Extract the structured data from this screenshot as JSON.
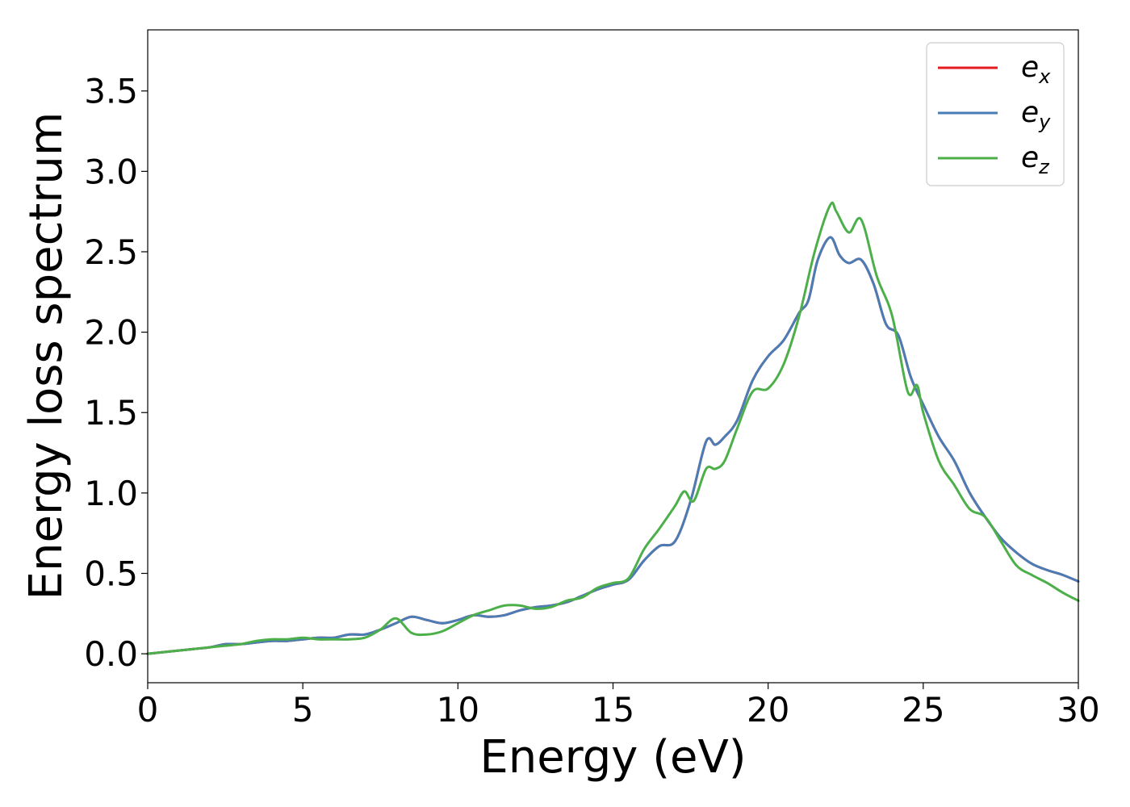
{
  "chart_data": {
    "type": "line",
    "title": "",
    "xlabel": "Energy (eV)",
    "ylabel": "Energy loss spectrum",
    "xlim": [
      0,
      30
    ],
    "ylim": [
      -0.18,
      3.88
    ],
    "xticks": [
      0,
      5,
      10,
      15,
      20,
      25,
      30
    ],
    "xtick_labels": [
      "0",
      "5",
      "10",
      "15",
      "20",
      "25",
      "30"
    ],
    "yticks": [
      0.0,
      0.5,
      1.0,
      1.5,
      2.0,
      2.5,
      3.0,
      3.5
    ],
    "ytick_labels": [
      "0.0",
      "0.5",
      "1.0",
      "1.5",
      "2.0",
      "2.5",
      "3.0",
      "3.5"
    ],
    "grid": false,
    "legend": "top-right",
    "series": [
      {
        "name": "e_x",
        "legend_base": "e",
        "legend_sub": "x",
        "color": "#e41a1c",
        "x": [
          0,
          0.5,
          1,
          1.5,
          2,
          2.5,
          3,
          3.5,
          4,
          4.5,
          5,
          5.5,
          6,
          6.5,
          7,
          7.5,
          8,
          8.5,
          9,
          9.5,
          10,
          10.5,
          11,
          11.5,
          12,
          12.5,
          13,
          13.5,
          14,
          14.5,
          15,
          15.5,
          16,
          16.5,
          17,
          17.5,
          18,
          18.3,
          18.6,
          19,
          19.5,
          20,
          20.5,
          21,
          21.3,
          21.6,
          22,
          22.3,
          22.6,
          23,
          23.4,
          23.8,
          24.2,
          24.6,
          25,
          25.5,
          26,
          26.5,
          27,
          27.5,
          28,
          28.5,
          29,
          29.5,
          30
        ],
        "y": [
          0.0,
          0.01,
          0.02,
          0.03,
          0.04,
          0.06,
          0.06,
          0.07,
          0.08,
          0.08,
          0.09,
          0.1,
          0.1,
          0.12,
          0.12,
          0.15,
          0.19,
          0.23,
          0.21,
          0.19,
          0.21,
          0.24,
          0.23,
          0.24,
          0.27,
          0.29,
          0.3,
          0.32,
          0.36,
          0.4,
          0.43,
          0.46,
          0.58,
          0.67,
          0.7,
          0.95,
          1.32,
          1.3,
          1.35,
          1.45,
          1.7,
          1.85,
          1.95,
          2.12,
          2.2,
          2.45,
          2.59,
          2.48,
          2.43,
          2.45,
          2.3,
          2.05,
          1.98,
          1.72,
          1.55,
          1.35,
          1.2,
          1.0,
          0.85,
          0.72,
          0.63,
          0.56,
          0.52,
          0.49,
          0.45
        ]
      },
      {
        "name": "e_y",
        "legend_base": "e",
        "legend_sub": "y",
        "color": "#4a7db5",
        "x": [
          0,
          0.5,
          1,
          1.5,
          2,
          2.5,
          3,
          3.5,
          4,
          4.5,
          5,
          5.5,
          6,
          6.5,
          7,
          7.5,
          8,
          8.5,
          9,
          9.5,
          10,
          10.5,
          11,
          11.5,
          12,
          12.5,
          13,
          13.5,
          14,
          14.5,
          15,
          15.5,
          16,
          16.5,
          17,
          17.5,
          18,
          18.3,
          18.6,
          19,
          19.5,
          20,
          20.5,
          21,
          21.3,
          21.6,
          22,
          22.3,
          22.6,
          23,
          23.4,
          23.8,
          24.2,
          24.6,
          25,
          25.5,
          26,
          26.5,
          27,
          27.5,
          28,
          28.5,
          29,
          29.5,
          30
        ],
        "y": [
          0.0,
          0.01,
          0.02,
          0.03,
          0.04,
          0.06,
          0.06,
          0.07,
          0.08,
          0.08,
          0.09,
          0.1,
          0.1,
          0.12,
          0.12,
          0.15,
          0.19,
          0.23,
          0.21,
          0.19,
          0.21,
          0.24,
          0.23,
          0.24,
          0.27,
          0.29,
          0.3,
          0.32,
          0.36,
          0.4,
          0.43,
          0.46,
          0.58,
          0.67,
          0.7,
          0.95,
          1.32,
          1.3,
          1.35,
          1.45,
          1.7,
          1.85,
          1.95,
          2.12,
          2.2,
          2.45,
          2.59,
          2.48,
          2.43,
          2.45,
          2.3,
          2.05,
          1.98,
          1.72,
          1.55,
          1.35,
          1.2,
          1.0,
          0.85,
          0.72,
          0.63,
          0.56,
          0.52,
          0.49,
          0.45
        ]
      },
      {
        "name": "e_z",
        "legend_base": "e",
        "legend_sub": "z",
        "color": "#4daf4a",
        "x": [
          0,
          0.5,
          1,
          1.5,
          2,
          2.5,
          3,
          3.5,
          4,
          4.5,
          5,
          5.5,
          6,
          6.5,
          7,
          7.5,
          8,
          8.5,
          9,
          9.5,
          10,
          10.5,
          11,
          11.5,
          12,
          12.5,
          13,
          13.5,
          14,
          14.5,
          15,
          15.5,
          16,
          16.5,
          17,
          17.3,
          17.6,
          18,
          18.3,
          18.6,
          19,
          19.5,
          20,
          20.5,
          21,
          21.5,
          22,
          22.2,
          22.6,
          23,
          23.5,
          24,
          24.5,
          24.8,
          25,
          25.5,
          26,
          26.5,
          27,
          27.5,
          28,
          28.5,
          29,
          29.5,
          30
        ],
        "y": [
          0.0,
          0.01,
          0.02,
          0.03,
          0.04,
          0.05,
          0.06,
          0.08,
          0.09,
          0.09,
          0.1,
          0.09,
          0.09,
          0.09,
          0.1,
          0.15,
          0.22,
          0.13,
          0.12,
          0.14,
          0.19,
          0.24,
          0.27,
          0.3,
          0.3,
          0.28,
          0.29,
          0.33,
          0.35,
          0.41,
          0.44,
          0.47,
          0.65,
          0.78,
          0.92,
          1.01,
          0.95,
          1.15,
          1.15,
          1.2,
          1.4,
          1.63,
          1.65,
          1.8,
          2.1,
          2.5,
          2.79,
          2.75,
          2.62,
          2.7,
          2.35,
          2.1,
          1.63,
          1.67,
          1.5,
          1.2,
          1.05,
          0.9,
          0.85,
          0.7,
          0.55,
          0.49,
          0.44,
          0.38,
          0.33
        ]
      }
    ]
  }
}
